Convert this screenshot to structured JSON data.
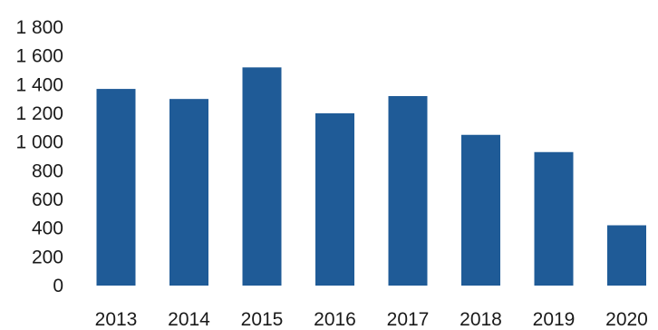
{
  "chart_data": {
    "type": "bar",
    "title": "",
    "xlabel": "",
    "ylabel": "",
    "categories": [
      "2013",
      "2014",
      "2015",
      "2016",
      "2017",
      "2018",
      "2019",
      "2020"
    ],
    "values": [
      1370,
      1300,
      1520,
      1200,
      1320,
      1050,
      930,
      420
    ],
    "ylim": [
      0,
      1800
    ],
    "yticks": [
      0,
      200,
      400,
      600,
      800,
      1000,
      1200,
      1400,
      1600,
      1800
    ],
    "ytick_labels": [
      "0",
      "200",
      "400",
      "600",
      "800",
      "1 000",
      "1 200",
      "1 400",
      "1 600",
      "1 800"
    ],
    "grid": false,
    "legend": "none",
    "bar_color": "#1f5b97"
  }
}
